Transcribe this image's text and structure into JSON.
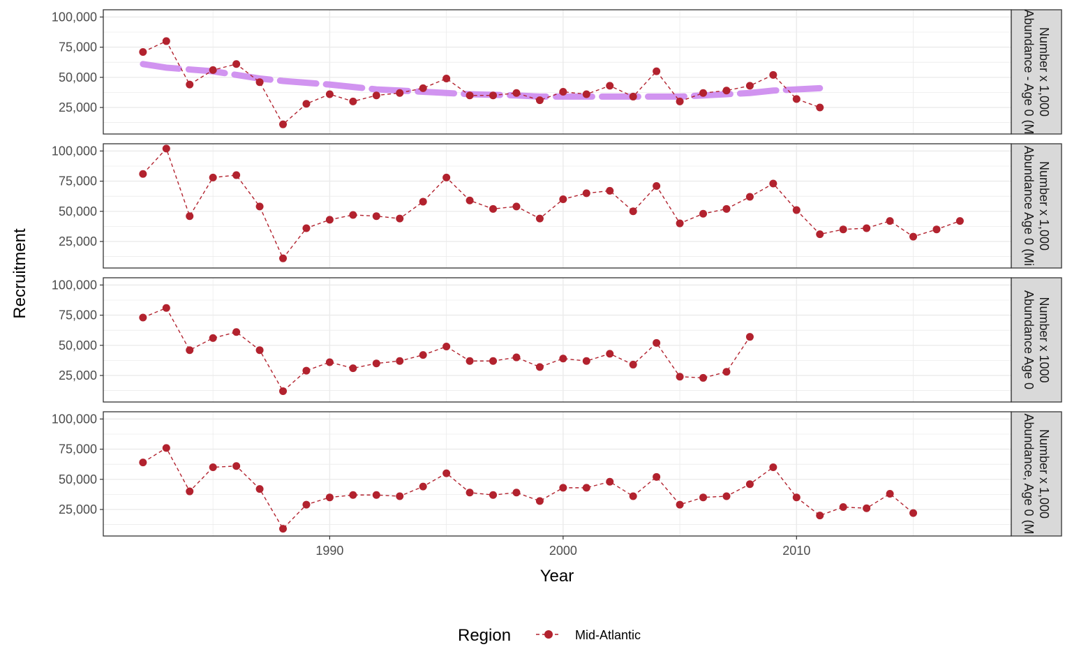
{
  "chart_data": {
    "type": "line",
    "xlabel": "Year",
    "ylabel": "Recruitment",
    "xlim": [
      1980.3,
      2019.2
    ],
    "ylim": [
      3000,
      106000
    ],
    "x_ticks": [
      1990,
      2000,
      2010
    ],
    "y_ticks": [
      25000,
      50000,
      75000,
      100000
    ],
    "y_tick_labels": [
      "25,000",
      "50,000",
      "75,000",
      "100,000"
    ],
    "legend": {
      "title": "Region",
      "entries": [
        "Mid-Atlantic"
      ],
      "position": "bottom"
    },
    "colors": {
      "series": "#b2222e",
      "trend": "#cc88ee",
      "strip_fill": "#d9d9d9",
      "grid": "#ebebeb"
    },
    "panels": [
      {
        "strip_label": [
          "Abundance - Age 0 (M",
          "Number x 1,000"
        ],
        "series": [
          {
            "name": "Mid-Atlantic",
            "x": [
              1982,
              1983,
              1984,
              1985,
              1986,
              1987,
              1988,
              1989,
              1990,
              1991,
              1992,
              1993,
              1994,
              1995,
              1996,
              1997,
              1998,
              1999,
              2000,
              2001,
              2002,
              2003,
              2004,
              2005,
              2006,
              2007,
              2008,
              2009,
              2010,
              2011
            ],
            "y": [
              71000,
              80000,
              44000,
              56000,
              61000,
              46000,
              11000,
              28000,
              36000,
              30000,
              35000,
              37000,
              41000,
              49000,
              35000,
              35000,
              37000,
              31000,
              38000,
              36000,
              43000,
              34000,
              55000,
              30000,
              37000,
              39000,
              43000,
              52000,
              32000,
              25000
            ]
          }
        ],
        "trend": {
          "x": [
            1982,
            1983,
            1985,
            1986,
            1987,
            1988,
            1990,
            1991,
            1992,
            1993,
            1995,
            1996,
            1998,
            1999,
            2000,
            2001,
            2002,
            2003,
            2004,
            2005,
            2006,
            2007,
            2008,
            2009,
            2010,
            2011
          ],
          "y": [
            61000,
            58000,
            55000,
            52000,
            49000,
            47000,
            44000,
            42000,
            40000,
            39000,
            37000,
            36000,
            35000,
            34000,
            34000,
            34000,
            34000,
            34000,
            34000,
            34000,
            35000,
            36000,
            37000,
            39000,
            40000,
            41000
          ]
        }
      },
      {
        "strip_label": [
          "Abundance Age 0 (Mi",
          "Number x 1,000"
        ],
        "series": [
          {
            "name": "Mid-Atlantic",
            "x": [
              1982,
              1983,
              1984,
              1985,
              1986,
              1987,
              1988,
              1989,
              1990,
              1991,
              1992,
              1993,
              1994,
              1995,
              1996,
              1997,
              1998,
              1999,
              2000,
              2001,
              2002,
              2003,
              2004,
              2005,
              2006,
              2007,
              2008,
              2009,
              2010,
              2011,
              2012,
              2013,
              2014,
              2015,
              2016,
              2017
            ],
            "y": [
              81000,
              102000,
              46000,
              78000,
              80000,
              54000,
              11000,
              36000,
              43000,
              47000,
              46000,
              44000,
              58000,
              78000,
              59000,
              52000,
              54000,
              44000,
              60000,
              65000,
              67000,
              50000,
              71000,
              40000,
              48000,
              52000,
              62000,
              73000,
              51000,
              31000,
              35000,
              36000,
              42000,
              29000,
              35000,
              42000
            ]
          }
        ]
      },
      {
        "strip_label": [
          "Abundance Age 0",
          "Number x 1000"
        ],
        "series": [
          {
            "name": "Mid-Atlantic",
            "x": [
              1982,
              1983,
              1984,
              1985,
              1986,
              1987,
              1988,
              1989,
              1990,
              1991,
              1992,
              1993,
              1994,
              1995,
              1996,
              1997,
              1998,
              1999,
              2000,
              2001,
              2002,
              2003,
              2004,
              2005,
              2006,
              2007,
              2008
            ],
            "y": [
              73000,
              81000,
              46000,
              56000,
              61000,
              46000,
              12000,
              29000,
              36000,
              31000,
              35000,
              37000,
              42000,
              49000,
              37000,
              37000,
              40000,
              32000,
              39000,
              37000,
              43000,
              34000,
              52000,
              24000,
              23000,
              28000,
              57000
            ]
          }
        ]
      },
      {
        "strip_label": [
          "Abundance, Age 0 (M",
          "Number x 1,000"
        ],
        "series": [
          {
            "name": "Mid-Atlantic",
            "x": [
              1982,
              1983,
              1984,
              1985,
              1986,
              1987,
              1988,
              1989,
              1990,
              1991,
              1992,
              1993,
              1994,
              1995,
              1996,
              1997,
              1998,
              1999,
              2000,
              2001,
              2002,
              2003,
              2004,
              2005,
              2006,
              2007,
              2008,
              2009,
              2010,
              2011,
              2012,
              2013,
              2014,
              2015
            ],
            "y": [
              64000,
              76000,
              40000,
              60000,
              61000,
              42000,
              9000,
              29000,
              35000,
              37000,
              37000,
              36000,
              44000,
              55000,
              39000,
              37000,
              39000,
              32000,
              43000,
              43000,
              48000,
              36000,
              52000,
              29000,
              35000,
              36000,
              46000,
              60000,
              35000,
              20000,
              27000,
              26000,
              38000,
              22000
            ]
          }
        ]
      }
    ]
  }
}
